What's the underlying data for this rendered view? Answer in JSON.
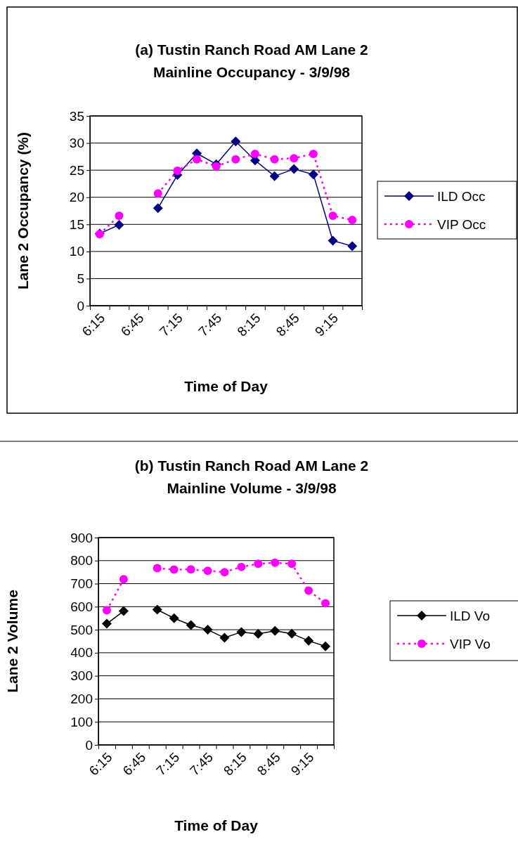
{
  "chart_data": [
    {
      "type": "line",
      "title": "(a) Tustin Ranch Road AM Lane 2 Mainline Occupancy - 3/9/98",
      "xlabel": "Time of Day",
      "ylabel": "Lane 2 Occupancy (%)",
      "categories": [
        "6:15",
        null,
        "6:45",
        null,
        "7:15",
        null,
        "7:45",
        null,
        "8:15",
        null,
        "8:45",
        null,
        "9:15",
        null
      ],
      "ylim": [
        0,
        35
      ],
      "yticks": [
        0,
        5,
        10,
        15,
        20,
        25,
        30,
        35
      ],
      "grid": "y",
      "legend": "right",
      "series": [
        {
          "name": "ILD Occ",
          "color": "#000080",
          "marker": "diamond",
          "line_style": "solid",
          "values": [
            13.3,
            14.9,
            null,
            18,
            24.1,
            28.1,
            26.1,
            30.3,
            26.8,
            23.9,
            25.2,
            24.2,
            12,
            11
          ]
        },
        {
          "name": "VIP Occ",
          "color": "#ff00ff",
          "marker": "circle",
          "line_style": "dotted",
          "values": [
            13.2,
            16.6,
            null,
            20.7,
            24.9,
            27,
            25.7,
            27,
            28,
            27,
            27.2,
            28,
            16.6,
            15.8
          ]
        }
      ]
    },
    {
      "type": "line",
      "title": "(b) Tustin Ranch Road AM Lane 2 Mainline Volume - 3/9/98",
      "xlabel": "Time of Day",
      "ylabel": "Lane 2 Volume",
      "categories": [
        "6:15",
        null,
        "6:45",
        null,
        "7:15",
        null,
        "7:45",
        null,
        "8:15",
        null,
        "8:45",
        null,
        "9:15",
        null
      ],
      "ylim": [
        0,
        900
      ],
      "yticks": [
        0,
        100,
        200,
        300,
        400,
        500,
        600,
        700,
        800,
        900
      ],
      "grid": "y",
      "legend": "right",
      "series": [
        {
          "name": "ILD Vo",
          "color": "#000000",
          "marker": "diamond",
          "line_style": "solid",
          "values": [
            526,
            581,
            null,
            587,
            550,
            520,
            500,
            465,
            490,
            482,
            495,
            483,
            452,
            428
          ]
        },
        {
          "name": "VIP Vo",
          "color": "#ff00ff",
          "marker": "circle",
          "line_style": "dotted",
          "values": [
            584,
            719,
            null,
            767,
            761,
            762,
            756,
            750,
            773,
            786,
            791,
            786,
            670,
            615
          ]
        }
      ]
    }
  ]
}
